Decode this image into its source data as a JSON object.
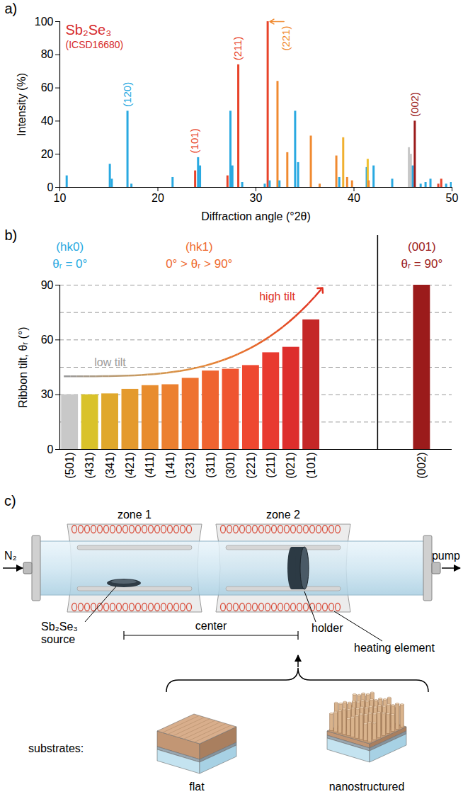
{
  "chart_data": [
    {
      "panel": "a)",
      "type": "stem",
      "title": "Sb₂Se₃",
      "subtitle": "(ICSD16680)",
      "x_label": "Diffraction angle (°2θ)",
      "y_label": "Intensity (%)",
      "xlim": [
        10,
        50
      ],
      "ylim": [
        0,
        100
      ],
      "xticks": [
        10,
        20,
        30,
        40,
        50
      ],
      "yticks": [
        0,
        20,
        40,
        60,
        80,
        100
      ],
      "x": [
        10.7,
        15.1,
        15.3,
        16.9,
        17.3,
        21.5,
        23.8,
        24.1,
        24.3,
        27.1,
        27.4,
        27.6,
        28.2,
        28.6,
        30.9,
        31.2,
        31.4,
        32.2,
        32.4,
        33.2,
        34.0,
        34.3,
        35.6,
        36.5,
        38.2,
        38.5,
        38.9,
        39.3,
        39.8,
        41.3,
        41.4,
        41.5,
        42.0,
        43.9,
        45.6,
        45.8,
        46.0,
        46.2,
        46.8,
        47.3,
        47.8,
        48.6,
        48.9,
        49.4,
        49.9
      ],
      "values": [
        7,
        14,
        5,
        46,
        2,
        6,
        10,
        18,
        13,
        7,
        46,
        13,
        74,
        3,
        2,
        100,
        4,
        64,
        4,
        21,
        46,
        15,
        31,
        2,
        19,
        6,
        30,
        6,
        4,
        12,
        17,
        4,
        13,
        5,
        24,
        20,
        13,
        40,
        2,
        3,
        5,
        2,
        5,
        2,
        3
      ],
      "colors": [
        "#29a9e1",
        "#29a9e1",
        "#29a9e1",
        "#29a9e1",
        "#29a9e1",
        "#29a9e1",
        "#e8442a",
        "#29a9e1",
        "#29a9e1",
        "#e8442a",
        "#29a9e1",
        "#29a9e1",
        "#e8442a",
        "#29a9e1",
        "#29a9e1",
        "#e8442a",
        "#29a9e1",
        "#f08a30",
        "#29a9e1",
        "#f08a30",
        "#29a9e1",
        "#29a9e1",
        "#f08a30",
        "#f08a30",
        "#f08a30",
        "#29a9e1",
        "#f0b030",
        "#f08a30",
        "#f08a30",
        "#29a9e1",
        "#f0c030",
        "#f08a30",
        "#29a9e1",
        "#29a9e1",
        "#c8c8c8",
        "#c8c8c8",
        "#29a9e1",
        "#9b1b1b",
        "#29a9e1",
        "#29a9e1",
        "#29a9e1",
        "#e8442a",
        "#e8442a",
        "#29a9e1",
        "#29a9e1"
      ],
      "annotations": [
        {
          "text": "(120)",
          "x": 16.9,
          "color": "#29a9e1"
        },
        {
          "text": "(101)",
          "x": 23.8,
          "color": "#e8442a"
        },
        {
          "text": "(211)",
          "x": 28.2,
          "color": "#e8442a"
        },
        {
          "text": "(221)",
          "x": 31.2,
          "color": "#f08a30"
        },
        {
          "text": "(002)",
          "x": 46.2,
          "color": "#9b1b1b"
        }
      ]
    },
    {
      "panel": "b)",
      "type": "bar",
      "y_label": "Ribbon tilt, θᵣ (°)",
      "categories": [
        "(501)",
        "(431)",
        "(341)",
        "(421)",
        "(411)",
        "(141)",
        "(231)",
        "(311)",
        "(301)",
        "(221)",
        "(211)",
        "(021)",
        "(101)",
        "(002)"
      ],
      "values": [
        30,
        30,
        30.5,
        33,
        35,
        35.5,
        39,
        43,
        44,
        46,
        53,
        56,
        71,
        90
      ],
      "colors": [
        "#c8c8c8",
        "#d9c22a",
        "#e0a82c",
        "#e49a2e",
        "#e88c2e",
        "#ec8030",
        "#ee7230",
        "#ef6430",
        "#ef5530",
        "#ee4830",
        "#e83a30",
        "#dd2e2c",
        "#c42828",
        "#9b1b1b"
      ],
      "ylim": [
        0,
        90
      ],
      "yticks": [
        0,
        30,
        60,
        90
      ],
      "grid": true,
      "groups": [
        {
          "label": "(hk0)",
          "sublabel": "θᵣ = 0°",
          "color": "#29a9e1"
        },
        {
          "label": "(hk1)",
          "sublabel": "0° > θᵣ > 90°",
          "color": "#ee6a2e"
        },
        {
          "label": "(001)",
          "sublabel": "θᵣ = 90°",
          "color": "#9b1b1b"
        }
      ],
      "annotations": [
        {
          "text": "low tilt",
          "color": "#9a9a9a"
        },
        {
          "text": "high tilt",
          "color": "#e03020"
        }
      ]
    }
  ],
  "diagram": {
    "panel": "c)",
    "zones": [
      "zone 1",
      "zone 2"
    ],
    "inlet": "N₂",
    "outlet": "pump",
    "source": [
      "Sb₂Se₃",
      "source"
    ],
    "center": "center",
    "holder": "holder",
    "heater": "heating element",
    "substrates": {
      "title": "substrates:",
      "items": [
        "flat",
        "nanostructured"
      ]
    }
  }
}
